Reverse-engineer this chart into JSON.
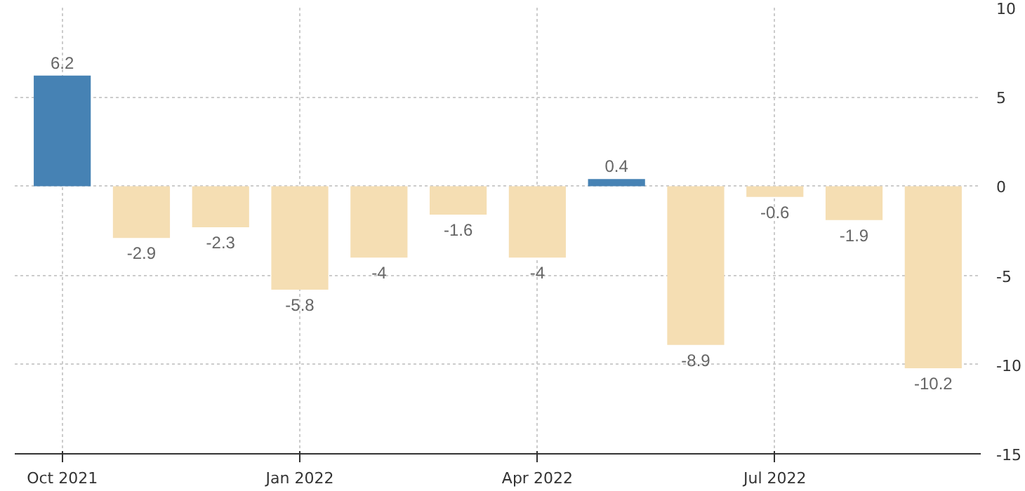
{
  "chart_data": {
    "type": "bar",
    "categories": [
      "Oct 2021",
      null,
      null,
      "Jan 2022",
      null,
      null,
      "Apr 2022",
      null,
      null,
      "Jul 2022",
      null,
      null
    ],
    "values": [
      6.2,
      -2.9,
      -2.3,
      -5.8,
      -4,
      -1.6,
      -4,
      0.4,
      -8.9,
      -0.6,
      -1.9,
      -10.2
    ],
    "colors": [
      "#4682b4",
      "#f5deb3",
      "#f5deb3",
      "#f5deb3",
      "#f5deb3",
      "#f5deb3",
      "#f5deb3",
      "#4682b4",
      "#f5deb3",
      "#f5deb3",
      "#f5deb3",
      "#f5deb3"
    ],
    "ylim": [
      -15,
      10
    ],
    "yticks": [
      -15,
      -10,
      -5,
      0,
      5,
      10
    ],
    "grid": true,
    "data_labels": true
  }
}
